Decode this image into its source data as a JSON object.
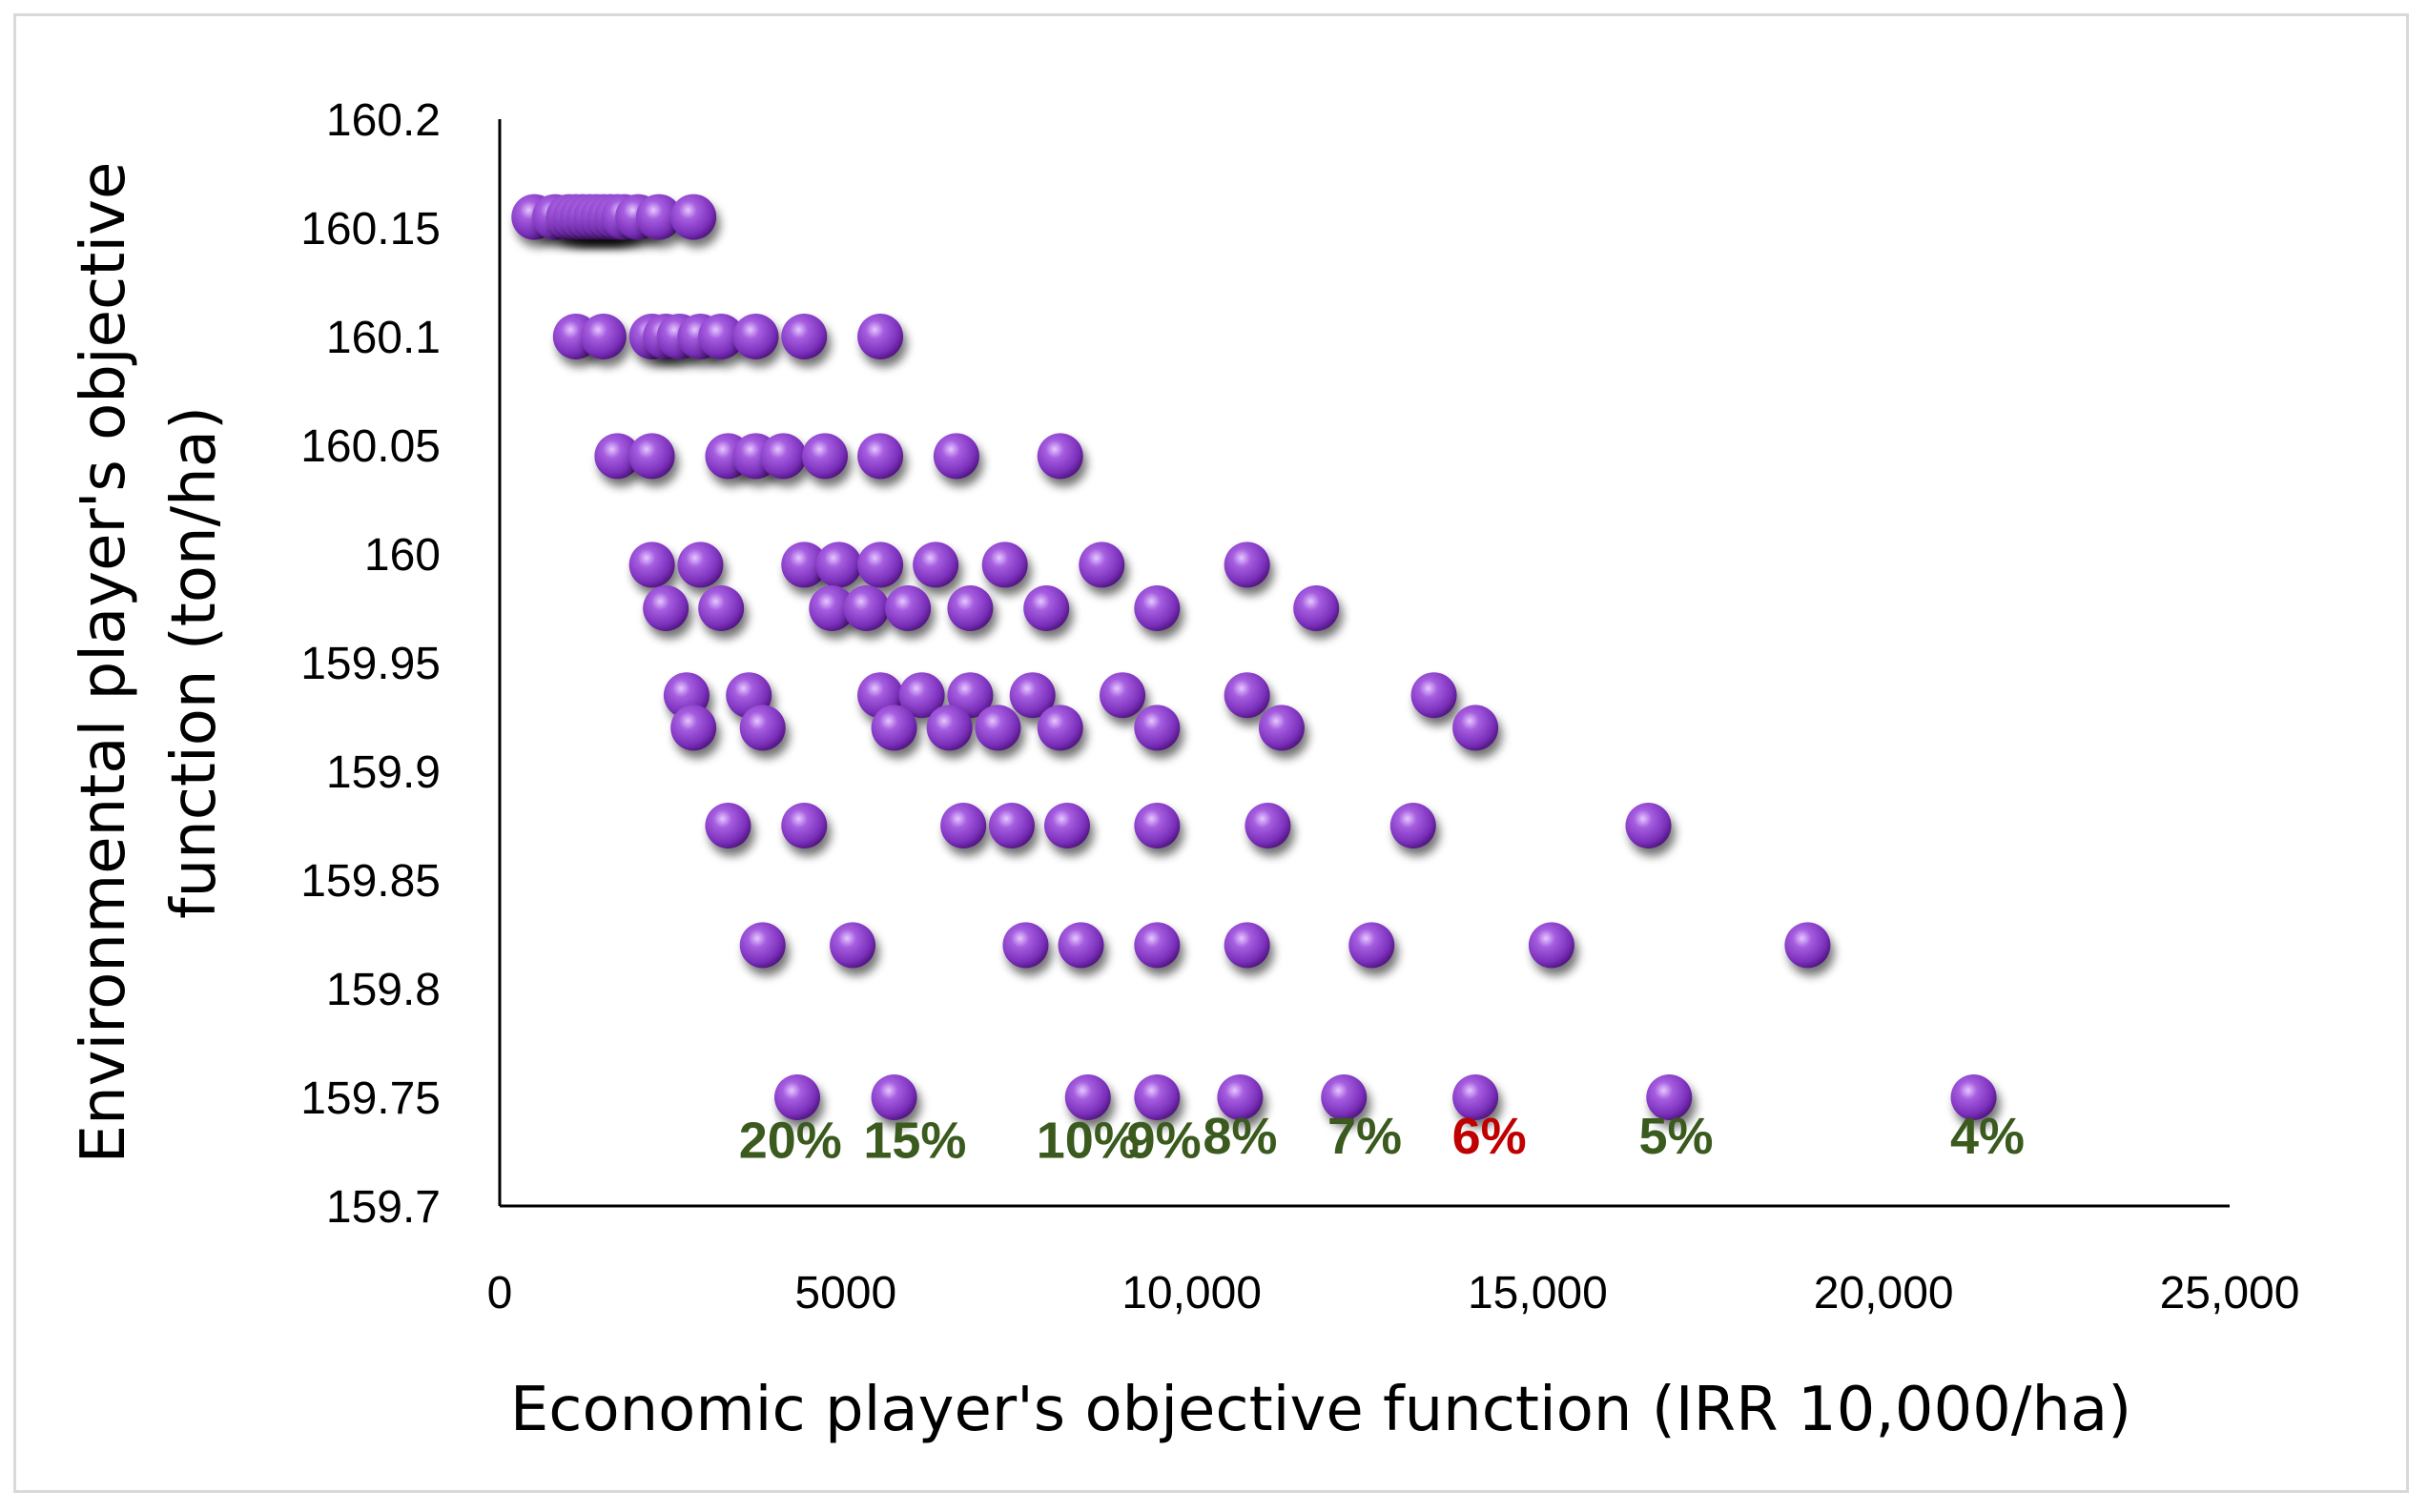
{
  "chart_data": {
    "type": "scatter",
    "xlabel": "Economic player's objective function (IRR 10,000/ha)",
    "ylabel_lines": [
      "Environmental player's objective",
      "function (ton/ha)"
    ],
    "xlim": [
      0,
      25000
    ],
    "ylim": [
      159.7,
      160.2
    ],
    "x_ticks": [
      "0",
      "5000",
      "10,000",
      "15,000",
      "20,000",
      "25,000"
    ],
    "y_ticks": [
      "160.2",
      "160.15",
      "160.1",
      "160.05",
      "160",
      "159.95",
      "159.9",
      "159.85",
      "159.8",
      "159.75",
      "159.7"
    ],
    "marker_color": "#8a3fc6",
    "grid": false,
    "legend": "none",
    "points": [
      [
        500,
        160.155
      ],
      [
        800,
        160.155
      ],
      [
        1000,
        160.155
      ],
      [
        1100,
        160.155
      ],
      [
        1200,
        160.155
      ],
      [
        1300,
        160.155
      ],
      [
        1400,
        160.155
      ],
      [
        1500,
        160.155
      ],
      [
        1600,
        160.155
      ],
      [
        1700,
        160.155
      ],
      [
        1800,
        160.155
      ],
      [
        2000,
        160.155
      ],
      [
        2300,
        160.155
      ],
      [
        2800,
        160.155
      ],
      [
        1100,
        160.1
      ],
      [
        1500,
        160.1
      ],
      [
        2200,
        160.1
      ],
      [
        2400,
        160.1
      ],
      [
        2600,
        160.1
      ],
      [
        2900,
        160.1
      ],
      [
        3200,
        160.1
      ],
      [
        3700,
        160.1
      ],
      [
        4400,
        160.1
      ],
      [
        5500,
        160.1
      ],
      [
        1700,
        160.045
      ],
      [
        2200,
        160.045
      ],
      [
        3300,
        160.045
      ],
      [
        3700,
        160.045
      ],
      [
        4100,
        160.045
      ],
      [
        4700,
        160.045
      ],
      [
        5500,
        160.045
      ],
      [
        6600,
        160.045
      ],
      [
        8100,
        160.045
      ],
      [
        2200,
        159.995
      ],
      [
        2900,
        159.995
      ],
      [
        4400,
        159.995
      ],
      [
        4900,
        159.995
      ],
      [
        5500,
        159.995
      ],
      [
        6300,
        159.995
      ],
      [
        7300,
        159.995
      ],
      [
        8700,
        159.995
      ],
      [
        10800,
        159.995
      ],
      [
        2400,
        159.975
      ],
      [
        3200,
        159.975
      ],
      [
        4800,
        159.975
      ],
      [
        5300,
        159.975
      ],
      [
        5900,
        159.975
      ],
      [
        6800,
        159.975
      ],
      [
        7900,
        159.975
      ],
      [
        9500,
        159.975
      ],
      [
        11800,
        159.975
      ],
      [
        2700,
        159.935
      ],
      [
        3600,
        159.935
      ],
      [
        5500,
        159.935
      ],
      [
        6100,
        159.935
      ],
      [
        6800,
        159.935
      ],
      [
        7700,
        159.935
      ],
      [
        9000,
        159.935
      ],
      [
        10800,
        159.935
      ],
      [
        13500,
        159.935
      ],
      [
        2800,
        159.92
      ],
      [
        3800,
        159.92
      ],
      [
        5700,
        159.92
      ],
      [
        6500,
        159.92
      ],
      [
        7200,
        159.92
      ],
      [
        8100,
        159.92
      ],
      [
        9500,
        159.92
      ],
      [
        11300,
        159.92
      ],
      [
        14100,
        159.92
      ],
      [
        3300,
        159.875
      ],
      [
        4400,
        159.875
      ],
      [
        6700,
        159.875
      ],
      [
        7400,
        159.875
      ],
      [
        8200,
        159.875
      ],
      [
        9500,
        159.875
      ],
      [
        11100,
        159.875
      ],
      [
        13200,
        159.875
      ],
      [
        16600,
        159.875
      ],
      [
        3800,
        159.82
      ],
      [
        5100,
        159.82
      ],
      [
        7600,
        159.82
      ],
      [
        8400,
        159.82
      ],
      [
        9500,
        159.82
      ],
      [
        10800,
        159.82
      ],
      [
        12600,
        159.82
      ],
      [
        15200,
        159.82
      ],
      [
        18900,
        159.82
      ],
      [
        4300,
        159.75
      ],
      [
        5700,
        159.75
      ],
      [
        8500,
        159.75
      ],
      [
        9500,
        159.75
      ],
      [
        10700,
        159.75
      ],
      [
        12200,
        159.75
      ],
      [
        14100,
        159.75
      ],
      [
        16900,
        159.75
      ],
      [
        21300,
        159.75
      ]
    ],
    "annotations": [
      {
        "text": "20%",
        "x": 4200,
        "y": 159.73,
        "color": "#3a5a1e"
      },
      {
        "text": "15%",
        "x": 6000,
        "y": 159.73,
        "color": "#3a5a1e"
      },
      {
        "text": "10%",
        "x": 8500,
        "y": 159.73,
        "color": "#3a5a1e"
      },
      {
        "text": "9%",
        "x": 9600,
        "y": 159.73,
        "color": "#3a5a1e"
      },
      {
        "text": "8%",
        "x": 10700,
        "y": 159.732,
        "color": "#3a5a1e"
      },
      {
        "text": "7%",
        "x": 12500,
        "y": 159.732,
        "color": "#3a5a1e"
      },
      {
        "text": "6%",
        "x": 14300,
        "y": 159.732,
        "color": "#c00000"
      },
      {
        "text": "5%",
        "x": 17000,
        "y": 159.732,
        "color": "#3a5a1e"
      },
      {
        "text": "4%",
        "x": 21500,
        "y": 159.732,
        "color": "#3a5a1e"
      }
    ]
  }
}
